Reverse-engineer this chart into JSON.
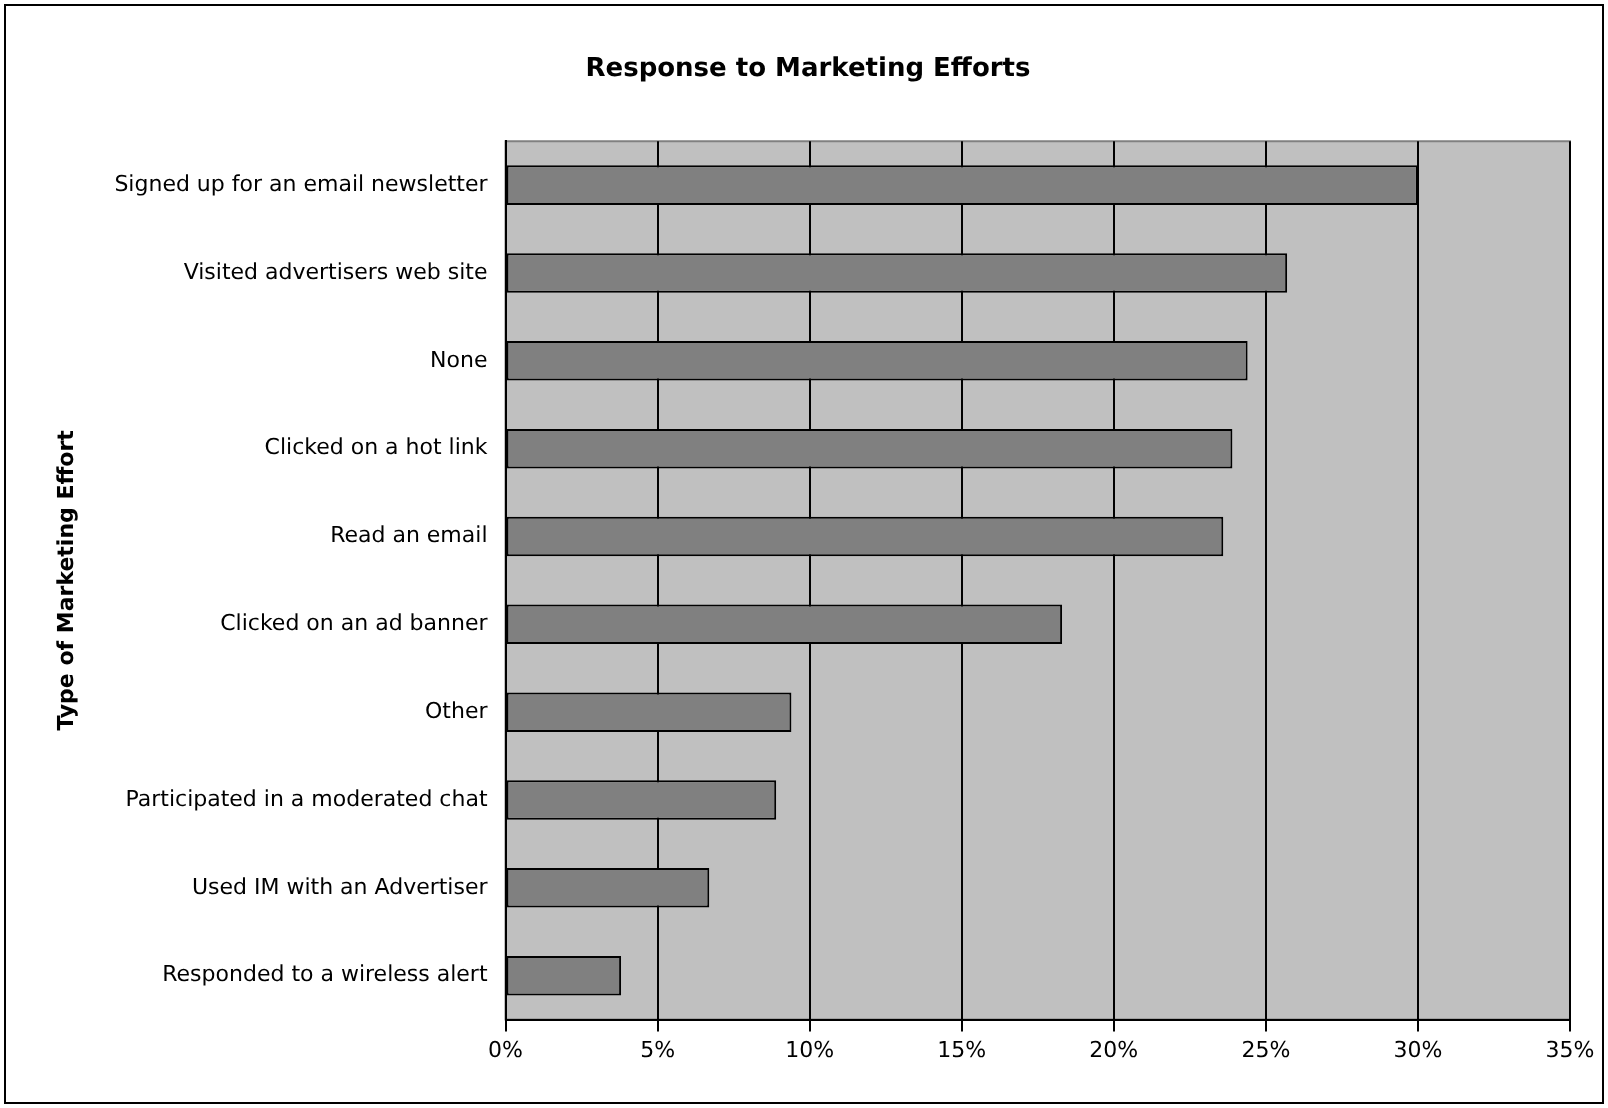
{
  "chart_data": {
    "type": "bar",
    "orientation": "horizontal",
    "title": "Response to Marketing Efforts",
    "ylabel": "Type of Marketing Effort",
    "categories": [
      "Signed up for an email newsletter",
      "Visited advertisers web site",
      "None",
      "Clicked on a hot link",
      "Read an email",
      "Clicked on an ad banner",
      "Other",
      "Participated in a moderated chat",
      "Used IM with an Advertiser",
      "Responded to a wireless alert"
    ],
    "values": [
      30.0,
      25.7,
      24.4,
      23.9,
      23.6,
      18.3,
      9.4,
      8.9,
      6.7,
      3.8
    ],
    "color": "#808080",
    "xlim": [
      0,
      35
    ],
    "xticks": [
      {
        "value": 0,
        "label": "0%"
      },
      {
        "value": 5,
        "label": "5%"
      },
      {
        "value": 10,
        "label": "10%"
      },
      {
        "value": 15,
        "label": "15%"
      },
      {
        "value": 20,
        "label": "20%"
      },
      {
        "value": 25,
        "label": "25%"
      },
      {
        "value": 30,
        "label": "30%"
      },
      {
        "value": 35,
        "label": "35%"
      }
    ],
    "grid": "x",
    "legend": false
  }
}
